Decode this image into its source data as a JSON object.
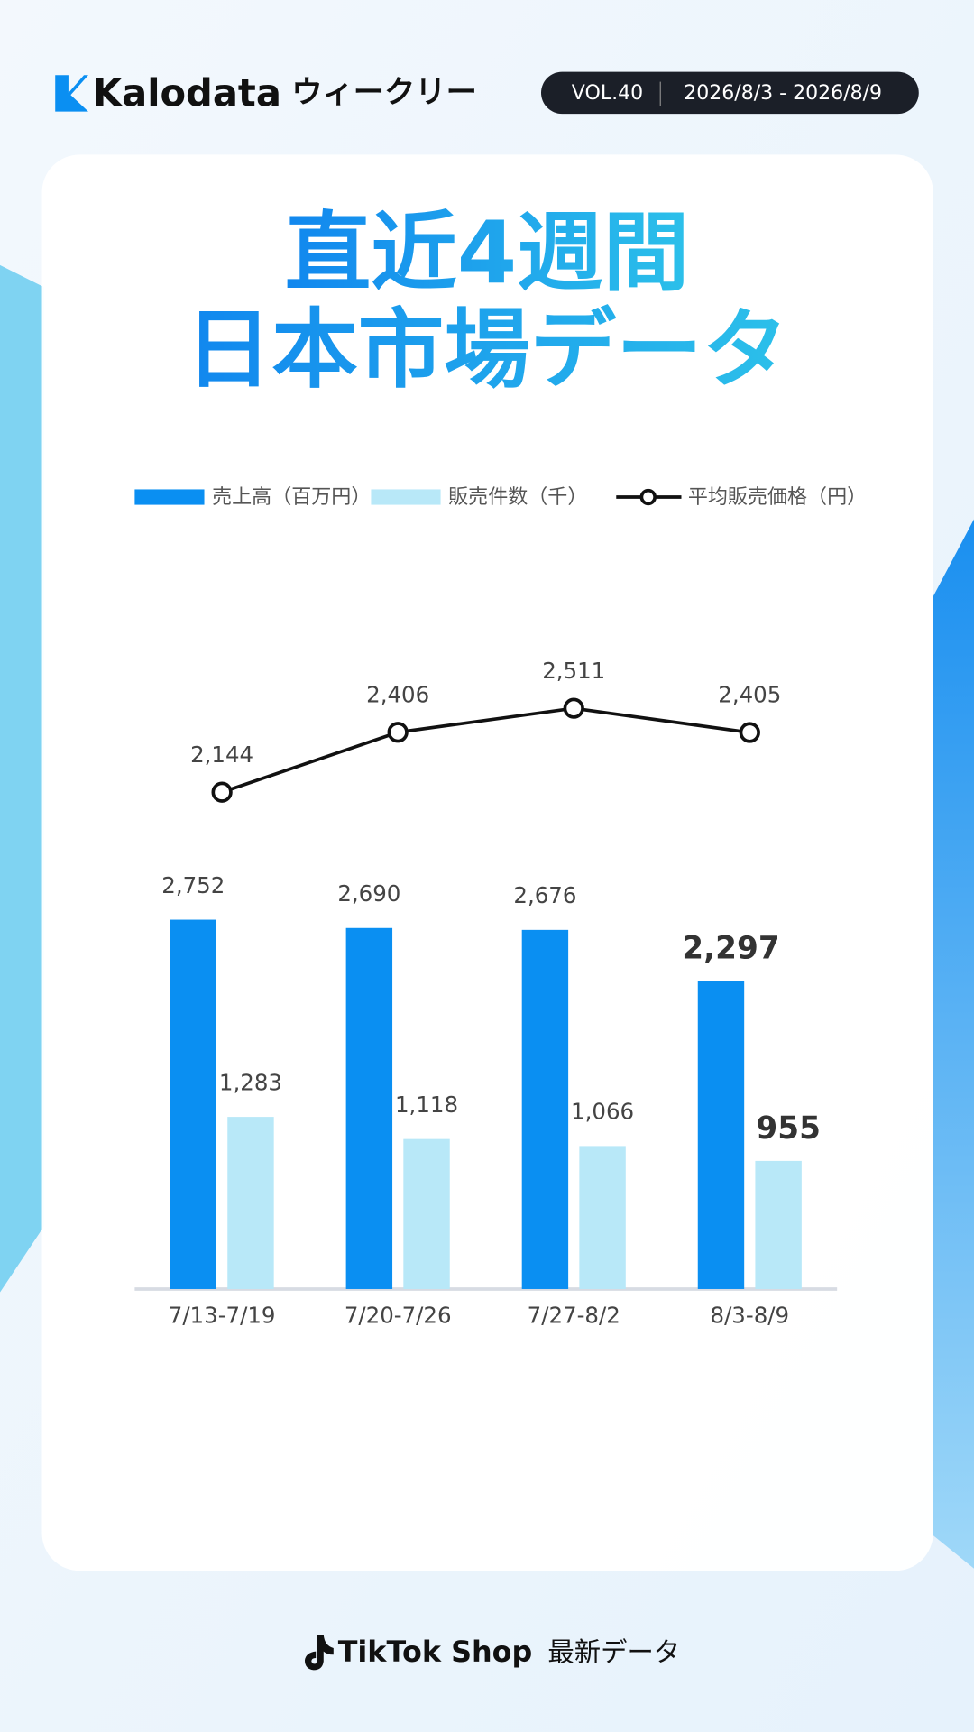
{
  "header": {
    "brand": "Kalodata",
    "series": "ウィークリー",
    "volume": "VOL.40",
    "period": "2026/8/3 - 2026/8/9"
  },
  "title": [
    "直近4週間",
    "日本市場データ"
  ],
  "chart_data": {
    "type": "bar",
    "categories": [
      "7/13-7/19",
      "7/20-7/26",
      "7/27-8/2",
      "8/3-8/9"
    ],
    "series": [
      {
        "name": "売上高（百万円）",
        "type": "bar",
        "color": "#0a8ff2",
        "values": [
          2752,
          2690,
          2676,
          2297
        ],
        "value_labels": [
          "2,752",
          "2,690",
          "2,676",
          "2,297"
        ]
      },
      {
        "name": "販売件数（千）",
        "type": "bar",
        "color": "#b8e8f8",
        "values": [
          1283,
          1118,
          1066,
          955
        ],
        "value_labels": [
          "1,283",
          "1,118",
          "1,066",
          "955"
        ]
      },
      {
        "name": "平均販売価格（円）",
        "type": "line",
        "axis": "y2",
        "color": "#111111",
        "values": [
          2144,
          2406,
          2511,
          2405
        ],
        "value_labels": [
          "2,144",
          "2,406",
          "2,511",
          "2,405"
        ]
      }
    ]
  },
  "footer": {
    "brand": "TikTok Shop",
    "caption": "最新データ"
  }
}
